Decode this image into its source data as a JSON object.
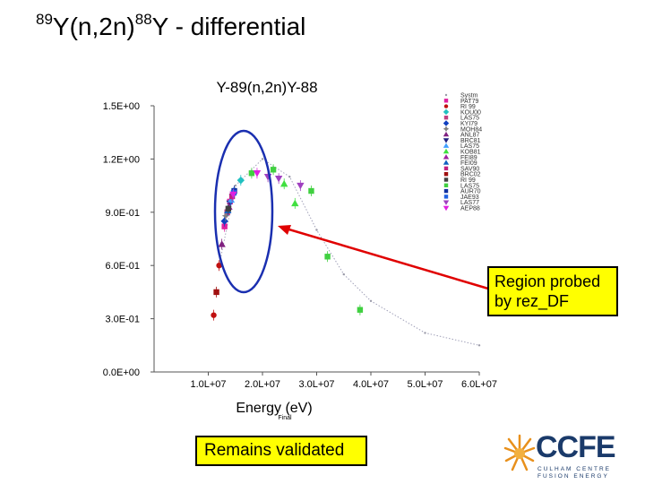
{
  "slide": {
    "title_pre": "89",
    "title_mid": "Y(n,2n)",
    "title_sup2": "88",
    "title_end": "Y - differential",
    "region_label": "Region probed by rez_DF",
    "validated_label": "Remains validated"
  },
  "logo": {
    "name": "CCFE",
    "subtitle_line1": "CULHAM CENTRE",
    "subtitle_line2": "FUSION ENERGY",
    "accent_color": "#e8901c",
    "text_color": "#1a3a6a"
  },
  "colors": {
    "arrow": "#e00000",
    "ellipse": "#1a2fb0",
    "box_fill": "#ffff00"
  },
  "chart_data": {
    "type": "scatter",
    "title": "Y-89(n,2n)Y-88",
    "xlabel": "Energy (eV)",
    "xlabel_sub": "Final",
    "ylabel": "",
    "xlim": [
      0,
      60000000.0
    ],
    "ylim": [
      0,
      1.5
    ],
    "x_ticks": [
      {
        "value": 10000000.0,
        "label": "1.0L+07"
      },
      {
        "value": 20000000.0,
        "label": "2.0L+07"
      },
      {
        "value": 30000000.0,
        "label": "3.0L+07"
      },
      {
        "value": 40000000.0,
        "label": "4.0L+07"
      },
      {
        "value": 50000000.0,
        "label": "5.0L+07"
      },
      {
        "value": 60000000.0,
        "label": "6.0L+07"
      }
    ],
    "y_ticks": [
      {
        "value": 0.0,
        "label": "0.0E+00"
      },
      {
        "value": 0.3,
        "label": "3.0E-01"
      },
      {
        "value": 0.6,
        "label": "6.0E-01"
      },
      {
        "value": 0.9,
        "label": "9.0E-01"
      },
      {
        "value": 1.2,
        "label": "1.2E+00"
      },
      {
        "value": 1.5,
        "label": "1.5E+00"
      }
    ],
    "legend_position": "right",
    "series": [
      {
        "name": "Systm",
        "color": "#9a9aa8",
        "shape": "dot",
        "points": [
          [
            12000000.0,
            0.6
          ],
          [
            15000000.0,
            1.05
          ],
          [
            20000000.0,
            1.2
          ],
          [
            25000000.0,
            1.1
          ],
          [
            30000000.0,
            0.8
          ],
          [
            35000000.0,
            0.55
          ],
          [
            40000000.0,
            0.4
          ],
          [
            50000000.0,
            0.22
          ],
          [
            60000000.0,
            0.15
          ]
        ]
      },
      {
        "name": "PAT79",
        "color": "#e020a0",
        "shape": "square",
        "points": [
          [
            13000000.0,
            0.82
          ],
          [
            14000000.0,
            0.96
          ]
        ]
      },
      {
        "name": "RI 99",
        "color": "#c01010",
        "shape": "circle",
        "points": [
          [
            11000000.0,
            0.32
          ],
          [
            12000000.0,
            0.6
          ]
        ]
      },
      {
        "name": "KOU00",
        "color": "#20c0c0",
        "shape": "diamond",
        "points": [
          [
            14500000.0,
            1.0
          ],
          [
            16000000.0,
            1.08
          ]
        ]
      },
      {
        "name": "LAS75",
        "color": "#c04080",
        "shape": "square",
        "points": [
          [
            13500000.0,
            0.9
          ]
        ]
      },
      {
        "name": "KYI79",
        "color": "#1040c0",
        "shape": "diamond",
        "points": [
          [
            13000000.0,
            0.85
          ]
        ]
      },
      {
        "name": "MOH84",
        "color": "#808080",
        "shape": "star",
        "points": [
          [
            13200000.0,
            0.88
          ]
        ]
      },
      {
        "name": "ANL87",
        "color": "#802080",
        "shape": "triangle",
        "points": [
          [
            12500000.0,
            0.72
          ]
        ]
      },
      {
        "name": "BRC81",
        "color": "#202080",
        "shape": "triangle-down",
        "points": [
          [
            14000000.0,
            0.95
          ]
        ]
      },
      {
        "name": "LAS75",
        "color": "#40a0ff",
        "shape": "triangle",
        "points": [
          [
            14200000.0,
            0.97
          ]
        ]
      },
      {
        "name": "KOB81",
        "color": "#40e040",
        "shape": "triangle",
        "points": [
          [
            24000000.0,
            1.06
          ],
          [
            26000000.0,
            0.95
          ]
        ]
      },
      {
        "name": "FEI89",
        "color": "#a020a0",
        "shape": "triangle",
        "points": [
          [
            13800000.0,
            0.93
          ]
        ]
      },
      {
        "name": "FEI09",
        "color": "#1060c0",
        "shape": "triangle",
        "points": [
          [
            13600000.0,
            0.91
          ]
        ]
      },
      {
        "name": "SAV90",
        "color": "#c02080",
        "shape": "square",
        "points": [
          [
            14400000.0,
            0.99
          ]
        ]
      },
      {
        "name": "BRC02",
        "color": "#a01010",
        "shape": "square",
        "points": [
          [
            11500000.0,
            0.45
          ]
        ]
      },
      {
        "name": "RI 99",
        "color": "#404040",
        "shape": "square",
        "points": [
          [
            13700000.0,
            0.92
          ]
        ]
      },
      {
        "name": "LAS75",
        "color": "#40d040",
        "shape": "square",
        "points": [
          [
            18000000.0,
            1.12
          ],
          [
            22000000.0,
            1.14
          ],
          [
            29000000.0,
            1.02
          ],
          [
            32000000.0,
            0.65
          ],
          [
            38000000.0,
            0.35
          ]
        ]
      },
      {
        "name": "AUR70",
        "color": "#1030a0",
        "shape": "square",
        "points": [
          [
            14800000.0,
            1.02
          ]
        ]
      },
      {
        "name": "JAE93",
        "color": "#2060e0",
        "shape": "square",
        "points": [
          [
            14700000.0,
            1.01
          ]
        ]
      },
      {
        "name": "LAS77",
        "color": "#a040c0",
        "shape": "triangle-down",
        "points": [
          [
            21000000.0,
            1.1
          ],
          [
            23000000.0,
            1.09
          ],
          [
            27000000.0,
            1.05
          ]
        ]
      },
      {
        "name": "AEP88",
        "color": "#e020e0",
        "shape": "triangle-down",
        "points": [
          [
            14600000.0,
            1.0
          ],
          [
            19000000.0,
            1.12
          ]
        ]
      }
    ]
  }
}
